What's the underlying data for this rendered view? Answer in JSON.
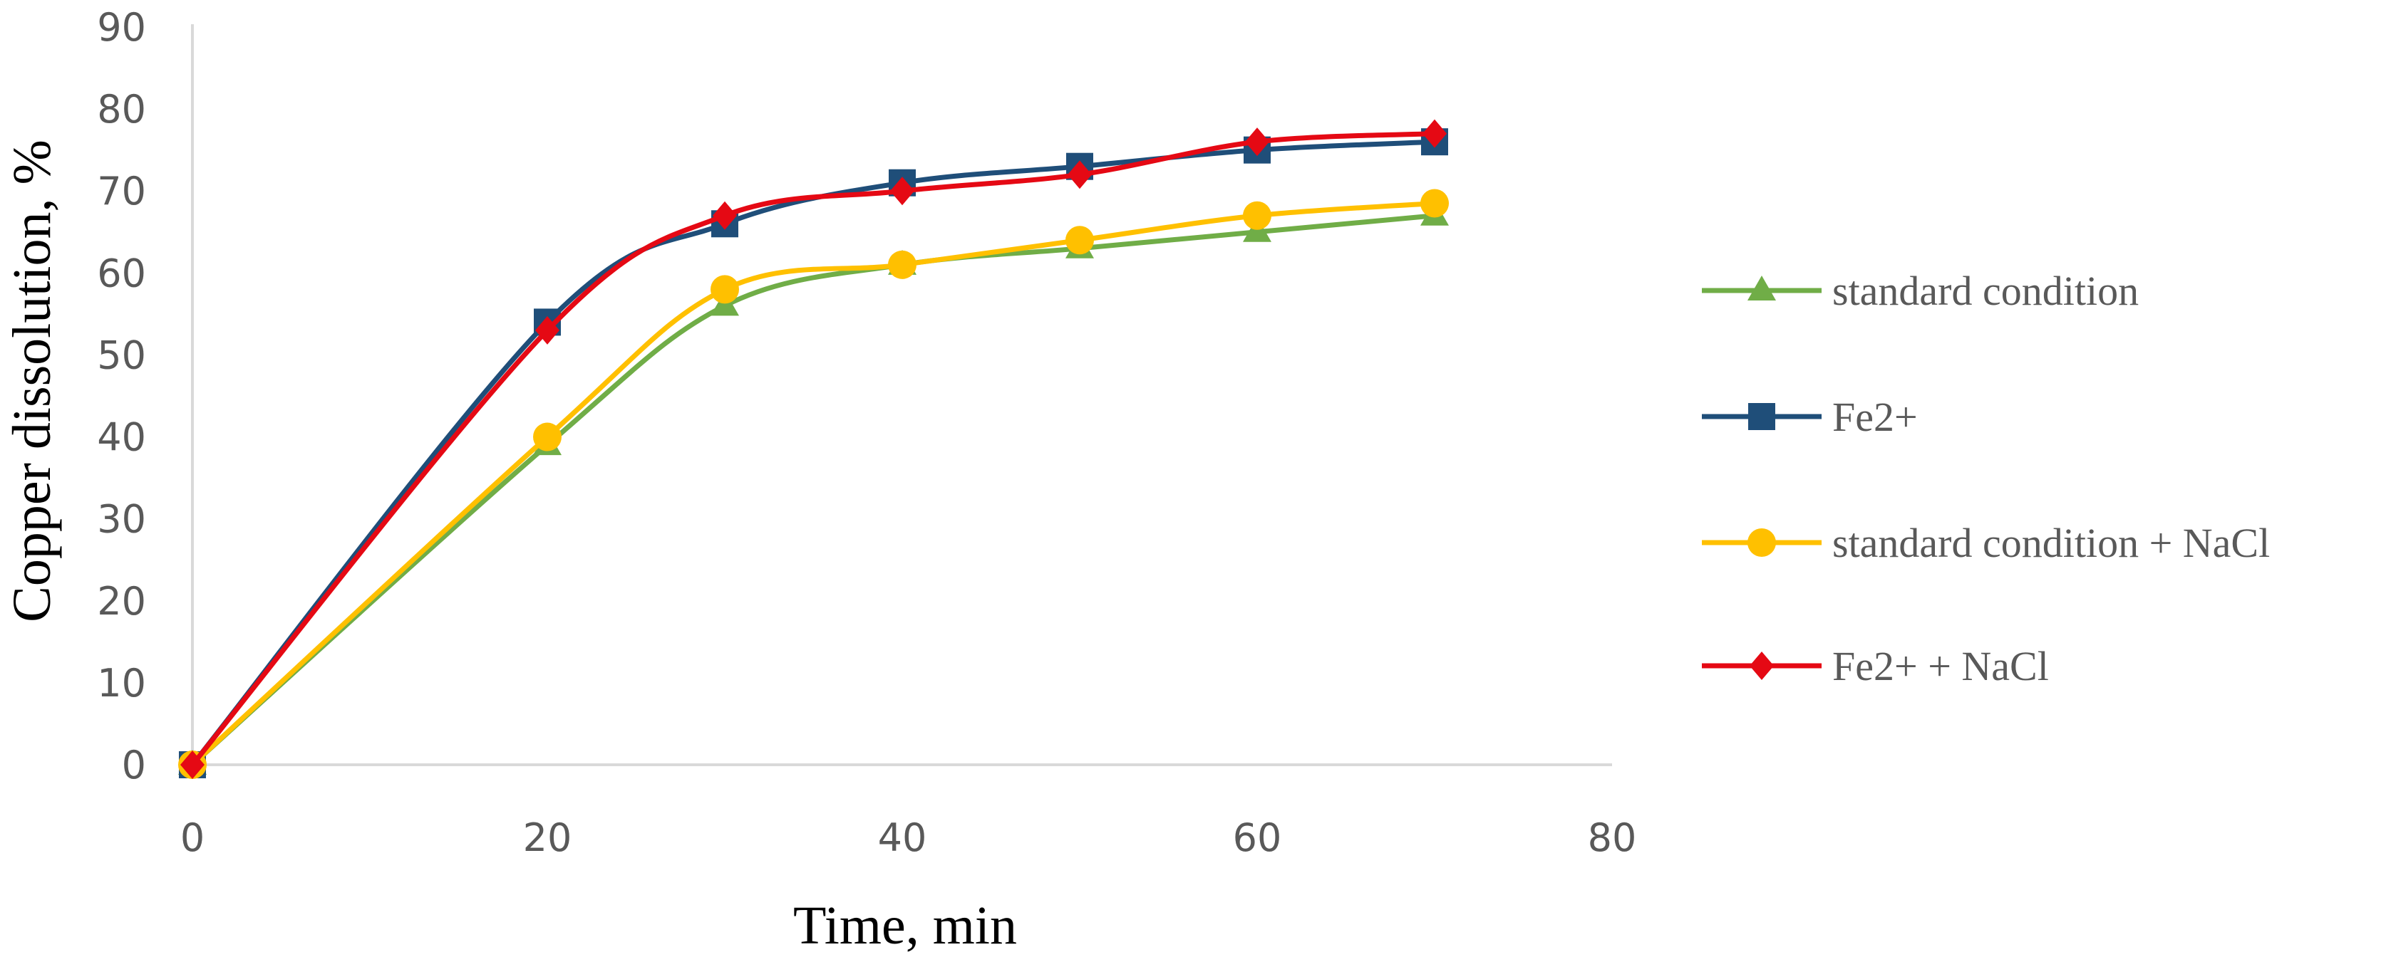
{
  "chart_data": {
    "type": "line",
    "title": "",
    "xlabel": "Time, min",
    "ylabel": "Copper dissolution, %",
    "xlim": [
      0,
      80
    ],
    "ylim": [
      0,
      90
    ],
    "x_ticks": [
      "0",
      "20",
      "40",
      "60",
      "80"
    ],
    "y_ticks": [
      "0",
      "10",
      "20",
      "30",
      "40",
      "50",
      "60",
      "70",
      "80",
      "90"
    ],
    "grid": false,
    "smooth": true,
    "legend_position": "right",
    "x": [
      0,
      20,
      30,
      40,
      50,
      60,
      70
    ],
    "series": [
      {
        "name": "standard condition",
        "color": "#70AD47",
        "marker": "triangle",
        "values": [
          0,
          39,
          56,
          61,
          63,
          65,
          67
        ]
      },
      {
        "name": "Fe2+",
        "color": "#1F4E79",
        "marker": "square",
        "values": [
          0,
          54,
          66,
          71,
          73,
          75,
          76
        ]
      },
      {
        "name": "standard condition + NaCl",
        "color": "#FFC000",
        "marker": "circle",
        "values": [
          0,
          40,
          58,
          61,
          64,
          67,
          68.5
        ]
      },
      {
        "name": "Fe2+ + NaCl",
        "color": "#E50914",
        "marker": "diamond",
        "values": [
          0,
          53,
          67,
          70,
          72,
          76,
          77
        ]
      }
    ]
  }
}
